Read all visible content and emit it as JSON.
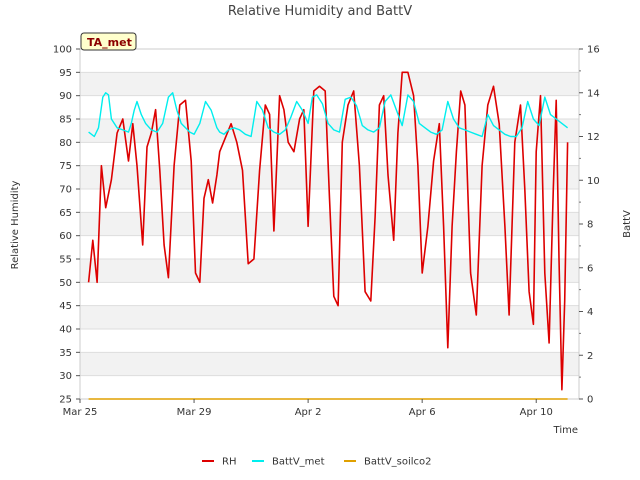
{
  "chart_data": {
    "type": "line",
    "title": "Relative Humidity and BattV",
    "badge": "TA_met",
    "xlabel": "Time",
    "ylabel": "Relative Humidity",
    "y2label": "BattV",
    "xlim": [
      0,
      17.5
    ],
    "ylim": [
      25,
      100
    ],
    "y2lim": [
      0,
      16
    ],
    "x_ticks": [
      {
        "x": 0,
        "label": "Mar 25"
      },
      {
        "x": 4,
        "label": "Mar 29"
      },
      {
        "x": 8,
        "label": "Apr 2"
      },
      {
        "x": 12,
        "label": "Apr 6"
      },
      {
        "x": 16,
        "label": "Apr 10"
      }
    ],
    "y_ticks": [
      25,
      30,
      35,
      40,
      45,
      50,
      55,
      60,
      65,
      70,
      75,
      80,
      85,
      90,
      95,
      100
    ],
    "y2_ticks": [
      0,
      2,
      4,
      6,
      8,
      10,
      12,
      14,
      16
    ],
    "series": [
      {
        "name": "RH",
        "color": "#dd0000",
        "axis": "left",
        "x": [
          0.3,
          0.45,
          0.6,
          0.75,
          0.9,
          1.1,
          1.3,
          1.5,
          1.7,
          1.85,
          2.0,
          2.2,
          2.35,
          2.5,
          2.65,
          2.8,
          2.95,
          3.1,
          3.3,
          3.5,
          3.7,
          3.9,
          4.05,
          4.2,
          4.35,
          4.5,
          4.65,
          4.8,
          4.9,
          5.1,
          5.3,
          5.5,
          5.7,
          5.9,
          6.1,
          6.3,
          6.5,
          6.65,
          6.8,
          7.0,
          7.15,
          7.3,
          7.5,
          7.7,
          7.85,
          8.0,
          8.2,
          8.4,
          8.6,
          8.75,
          8.9,
          9.05,
          9.2,
          9.4,
          9.6,
          9.8,
          10.0,
          10.2,
          10.35,
          10.5,
          10.65,
          10.8,
          11.0,
          11.15,
          11.3,
          11.5,
          11.7,
          11.85,
          12.0,
          12.2,
          12.4,
          12.6,
          12.75,
          12.9,
          13.05,
          13.2,
          13.35,
          13.5,
          13.7,
          13.9,
          14.1,
          14.3,
          14.5,
          14.7,
          14.9,
          15.05,
          15.25,
          15.45,
          15.6,
          15.75,
          15.9,
          16.0,
          16.15,
          16.3,
          16.45,
          16.6,
          16.7,
          16.8,
          16.9,
          17.0,
          17.1
        ],
        "values": [
          50,
          59,
          50,
          75,
          66,
          72,
          82,
          85,
          76,
          84,
          75,
          58,
          79,
          82,
          87,
          74,
          58,
          51,
          75,
          88,
          89,
          76,
          52,
          50,
          68,
          72,
          67,
          73,
          78,
          81,
          84,
          80,
          74,
          54,
          55,
          74,
          88,
          86,
          61,
          90,
          87,
          80,
          78,
          85,
          87,
          62,
          91,
          92,
          91,
          68,
          47,
          45,
          80,
          88,
          91,
          75,
          48,
          46,
          64,
          88,
          90,
          73,
          59,
          82,
          95,
          95,
          90,
          75,
          52,
          62,
          76,
          84,
          62,
          36,
          62,
          78,
          91,
          88,
          52,
          43,
          75,
          88,
          92,
          84,
          62,
          43,
          80,
          88,
          70,
          48,
          41,
          78,
          90,
          52,
          37,
          70,
          89,
          55,
          27,
          46,
          80
        ]
      },
      {
        "name": "BattV_met",
        "color": "#00eeee",
        "axis": "right",
        "x": [
          0.3,
          0.5,
          0.65,
          0.8,
          0.9,
          1.0,
          1.1,
          1.3,
          1.5,
          1.7,
          1.8,
          1.9,
          2.0,
          2.15,
          2.3,
          2.5,
          2.7,
          2.9,
          3.1,
          3.25,
          3.4,
          3.55,
          3.7,
          3.85,
          4.0,
          4.2,
          4.4,
          4.6,
          4.8,
          4.9,
          5.05,
          5.2,
          5.4,
          5.6,
          5.8,
          6.0,
          6.2,
          6.4,
          6.6,
          6.8,
          7.0,
          7.2,
          7.4,
          7.6,
          7.8,
          8.0,
          8.15,
          8.3,
          8.5,
          8.7,
          8.9,
          9.1,
          9.3,
          9.5,
          9.7,
          9.9,
          10.1,
          10.3,
          10.5,
          10.7,
          10.9,
          11.1,
          11.3,
          11.5,
          11.7,
          11.9,
          12.1,
          12.3,
          12.5,
          12.7,
          12.9,
          13.1,
          13.3,
          13.5,
          13.7,
          13.9,
          14.1,
          14.3,
          14.5,
          14.7,
          14.9,
          15.1,
          15.3,
          15.5,
          15.7,
          15.9,
          16.1,
          16.3,
          16.5,
          16.7,
          16.9,
          17.1
        ],
        "values": [
          12.2,
          12.0,
          12.4,
          13.8,
          14.0,
          13.9,
          12.8,
          12.4,
          12.3,
          12.2,
          12.6,
          13.2,
          13.6,
          13.0,
          12.6,
          12.3,
          12.2,
          12.6,
          13.8,
          14.0,
          13.2,
          12.6,
          12.4,
          12.2,
          12.1,
          12.6,
          13.6,
          13.2,
          12.4,
          12.2,
          12.1,
          12.3,
          12.4,
          12.3,
          12.1,
          12.0,
          13.6,
          13.2,
          12.4,
          12.2,
          12.1,
          12.3,
          12.9,
          13.6,
          13.2,
          12.6,
          13.8,
          13.9,
          13.5,
          12.6,
          12.3,
          12.2,
          13.7,
          13.8,
          13.4,
          12.5,
          12.3,
          12.2,
          12.4,
          13.6,
          13.9,
          13.2,
          12.5,
          13.9,
          13.6,
          12.6,
          12.4,
          12.2,
          12.1,
          12.3,
          13.6,
          12.8,
          12.4,
          12.3,
          12.2,
          12.1,
          12.0,
          13.0,
          12.5,
          12.3,
          12.1,
          12.0,
          12.0,
          12.4,
          13.6,
          12.8,
          12.5,
          13.8,
          13.0,
          12.8,
          12.6,
          12.4
        ]
      },
      {
        "name": "BattV_soilco2",
        "color": "#e0a000",
        "axis": "right",
        "x": [
          0.3,
          17.1
        ],
        "values": [
          0,
          0
        ]
      }
    ],
    "legend": [
      "RH",
      "BattV_met",
      "BattV_soilco2"
    ],
    "legend_position": "bottom-center",
    "grid": "horizontal-bands"
  }
}
